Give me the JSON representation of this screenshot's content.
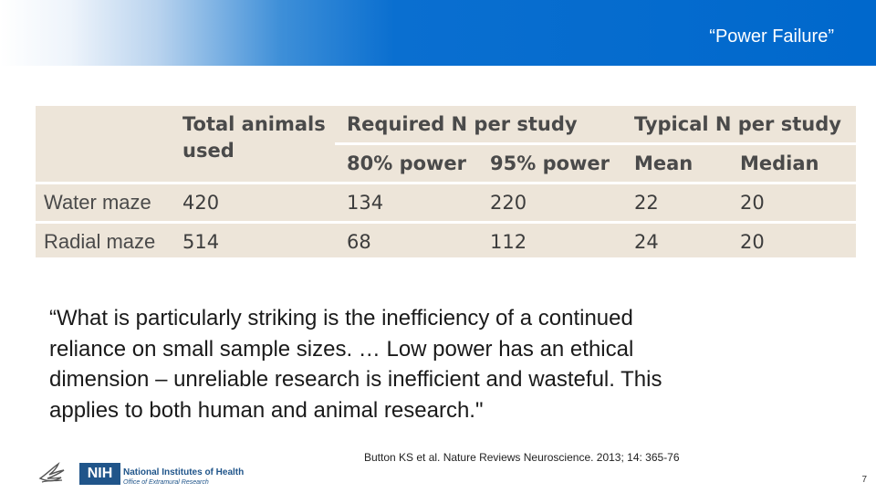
{
  "header": {
    "title": "“Power Failure”"
  },
  "table": {
    "col_total": "Total animals",
    "col_total_2": "used",
    "group_required": "Required N per study",
    "group_typical": "Typical N per study",
    "sub_80": "80% power",
    "sub_95": "95% power",
    "sub_mean": "Mean",
    "sub_median": "Median",
    "rows": [
      {
        "label": "Water maze",
        "total": "420",
        "p80": "134",
        "p95": "220",
        "mean": "22",
        "median": "20"
      },
      {
        "label": "Radial maze",
        "total": "514",
        "p80": "68",
        "p95": "112",
        "mean": "24",
        "median": "20"
      }
    ]
  },
  "quote": {
    "line1": "“What is particularly striking is the inefficiency of a continued",
    "line2": "reliance on small sample sizes. … Low power has an ethical",
    "line3": "dimension – unreliable research is inefficient and wasteful.  This",
    "line4": "applies to both human and animal research.\""
  },
  "citation": "Button KS et al.  Nature Reviews Neuroscience.  2013; 14: 365-76",
  "footer": {
    "nih_abbr": "NIH",
    "nih_name": "National Institutes of Health",
    "nih_office": "Office of Extramural Research",
    "page_number": "7"
  },
  "colors": {
    "banner_blue": "#0068cc",
    "table_bg": "#ede5d9",
    "nih_blue": "#20558a"
  },
  "icons": {
    "hhs": "hhs-eagle-logo-icon"
  }
}
